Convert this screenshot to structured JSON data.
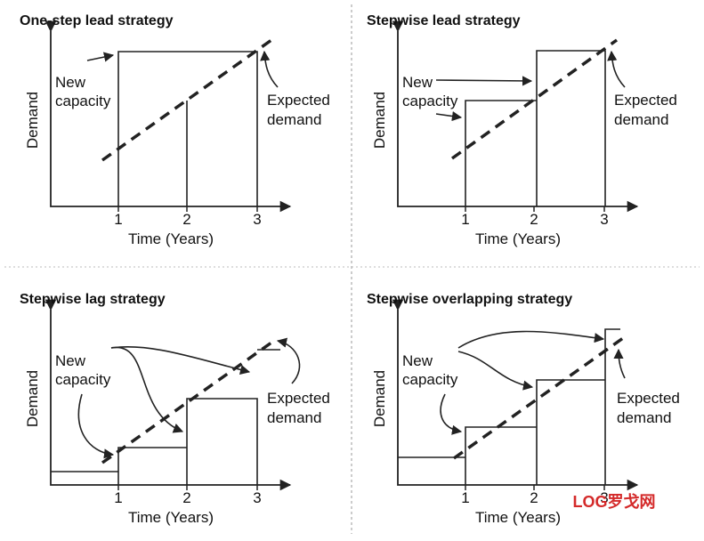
{
  "panels": [
    {
      "title": "One-step lead strategy",
      "y_label": "Demand",
      "x_label": "Time (Years)",
      "ticks": [
        "1",
        "2",
        "3"
      ],
      "new_capacity": [
        "New",
        "capacity"
      ],
      "expected_demand": [
        "Expected",
        "demand"
      ]
    },
    {
      "title": "Stepwise lead strategy",
      "y_label": "Demand",
      "x_label": "Time (Years)",
      "ticks": [
        "1",
        "2",
        "3"
      ],
      "new_capacity": [
        "New",
        "capacity"
      ],
      "expected_demand": [
        "Expected",
        "demand"
      ]
    },
    {
      "title": "Stepwise lag strategy",
      "y_label": "Demand",
      "x_label": "Time (Years)",
      "ticks": [
        "1",
        "2",
        "3"
      ],
      "new_capacity": [
        "New",
        "capacity"
      ],
      "expected_demand": [
        "Expected",
        "demand"
      ]
    },
    {
      "title": "Stepwise overlapping strategy",
      "y_label": "Demand",
      "x_label": "Time (Years)",
      "ticks": [
        "1",
        "2",
        "3"
      ],
      "new_capacity": [
        "New",
        "capacity"
      ],
      "expected_demand": [
        "Expected",
        "demand"
      ]
    }
  ],
  "watermark": "LOG罗戈网"
}
